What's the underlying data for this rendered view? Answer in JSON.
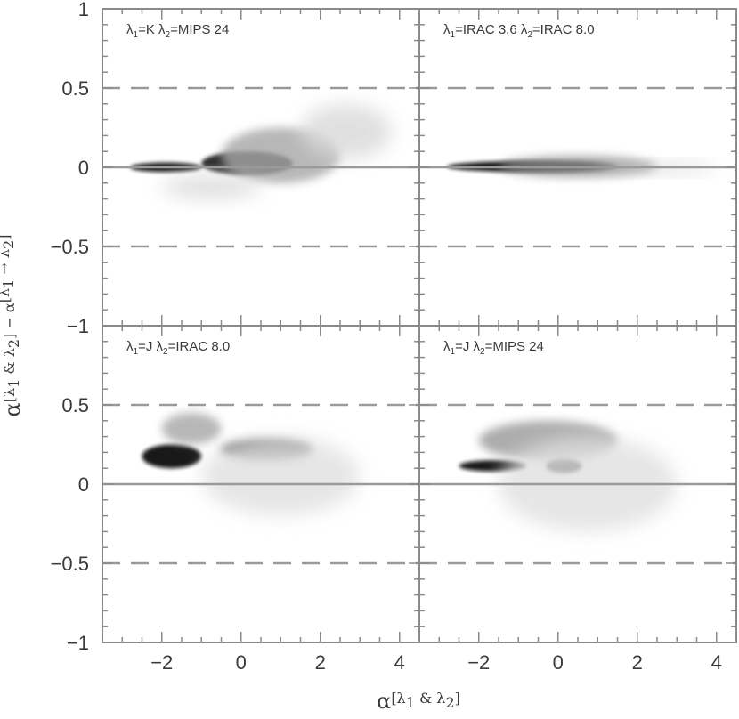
{
  "chart_data": [
    {
      "type": "scatter",
      "panel": "top-left",
      "label_l1": "λ",
      "label_l1_sub": "1",
      "label_l1_val": "=K",
      "label_l2": "λ",
      "label_l2_sub": "2",
      "label_l2_val": "=MIPS 24",
      "xlim": [
        -3.5,
        4.5
      ],
      "ylim": [
        -1,
        1
      ],
      "reference_lines": {
        "solid": [
          0
        ],
        "dashed": [
          0.5,
          -0.5
        ]
      },
      "density_regions": [
        {
          "x": [
            -2.8,
            -1.0
          ],
          "y": [
            -0.03,
            0.03
          ],
          "level": 0.95
        },
        {
          "x": [
            -1.0,
            1.3
          ],
          "y": [
            -0.05,
            0.1
          ],
          "level": 0.85
        },
        {
          "x": [
            -0.5,
            2.5
          ],
          "y": [
            -0.1,
            0.25
          ],
          "level": 0.35
        },
        {
          "x": [
            1.5,
            3.8
          ],
          "y": [
            0.05,
            0.4
          ],
          "level": 0.15
        },
        {
          "x": [
            -2.0,
            0.5
          ],
          "y": [
            -0.2,
            -0.05
          ],
          "level": 0.15
        }
      ]
    },
    {
      "type": "scatter",
      "panel": "top-right",
      "label_l1": "λ",
      "label_l1_sub": "1",
      "label_l1_val": "=IRAC 3.6",
      "label_l2": "λ",
      "label_l2_sub": "2",
      "label_l2_val": "=IRAC 8.0",
      "xlim": [
        -3.5,
        4.5
      ],
      "ylim": [
        -1,
        1
      ],
      "reference_lines": {
        "solid": [
          0
        ],
        "dashed": [
          0.5,
          -0.5
        ]
      },
      "density_regions": [
        {
          "x": [
            -2.8,
            1.5
          ],
          "y": [
            -0.03,
            0.04
          ],
          "level": 0.95
        },
        {
          "x": [
            -1.5,
            2.5
          ],
          "y": [
            -0.06,
            0.07
          ],
          "level": 0.45
        },
        {
          "x": [
            1.0,
            4.0
          ],
          "y": [
            -0.04,
            0.03
          ],
          "level": 0.15
        }
      ]
    },
    {
      "type": "scatter",
      "panel": "bottom-left",
      "label_l1": "λ",
      "label_l1_sub": "1",
      "label_l1_val": "=J",
      "label_l2": "λ",
      "label_l2_sub": "2",
      "label_l2_val": "=IRAC 8.0",
      "xlim": [
        -3.5,
        4.5
      ],
      "ylim": [
        -1,
        1
      ],
      "reference_lines": {
        "solid": [
          0
        ],
        "dashed": [
          0.5,
          -0.5
        ]
      },
      "density_regions": [
        {
          "x": [
            -2.5,
            -1.0
          ],
          "y": [
            0.1,
            0.25
          ],
          "level": 0.95
        },
        {
          "x": [
            -0.5,
            1.8
          ],
          "y": [
            0.15,
            0.28
          ],
          "level": 0.75
        },
        {
          "x": [
            -2.0,
            -0.5
          ],
          "y": [
            0.25,
            0.45
          ],
          "level": 0.35
        },
        {
          "x": [
            -1.0,
            3.0
          ],
          "y": [
            -0.2,
            0.3
          ],
          "level": 0.12
        }
      ]
    },
    {
      "type": "scatter",
      "panel": "bottom-right",
      "label_l1": "λ",
      "label_l1_sub": "1",
      "label_l1_val": "=J",
      "label_l2": "λ",
      "label_l2_sub": "2",
      "label_l2_val": "=MIPS 24",
      "xlim": [
        -3.5,
        4.5
      ],
      "ylim": [
        -1,
        1
      ],
      "reference_lines": {
        "solid": [
          0
        ],
        "dashed": [
          0.5,
          -0.5
        ]
      },
      "density_regions": [
        {
          "x": [
            -2.5,
            -0.8
          ],
          "y": [
            0.08,
            0.15
          ],
          "level": 0.95
        },
        {
          "x": [
            -0.3,
            0.6
          ],
          "y": [
            0.07,
            0.16
          ],
          "level": 0.95
        },
        {
          "x": [
            -2.0,
            1.5
          ],
          "y": [
            0.15,
            0.4
          ],
          "level": 0.4
        },
        {
          "x": [
            -1.5,
            3.0
          ],
          "y": [
            -0.3,
            0.3
          ],
          "level": 0.12
        }
      ]
    }
  ],
  "axes": {
    "x_ticks": [
      -2,
      0,
      2,
      4
    ],
    "x_tick_labels": [
      "−2",
      "0",
      "2",
      "4"
    ],
    "y_ticks_top": [
      1,
      0.5,
      0,
      -0.5,
      -1
    ],
    "y_tick_labels_top": [
      "1",
      "0.5",
      "0",
      "−0.5",
      "−1"
    ],
    "y_ticks_bottom": [
      0.5,
      0,
      -0.5,
      -1
    ],
    "y_tick_labels_bottom": [
      "0.5",
      "0",
      "−0.5",
      "−1"
    ],
    "xlabel": {
      "alpha": "α",
      "bracket": "[λ",
      "sub1": "1",
      "rest": " & λ",
      "sub2": "2",
      "close": "]"
    },
    "ylabel": {
      "alpha": "α",
      "part1": "[λ",
      "sub1": "1",
      "part2": " & λ",
      "sub2": "2",
      "part3": "] − α",
      "part4": "[λ",
      "sub3": "1",
      "part5": " → λ",
      "sub4": "2",
      "close": "]"
    }
  }
}
